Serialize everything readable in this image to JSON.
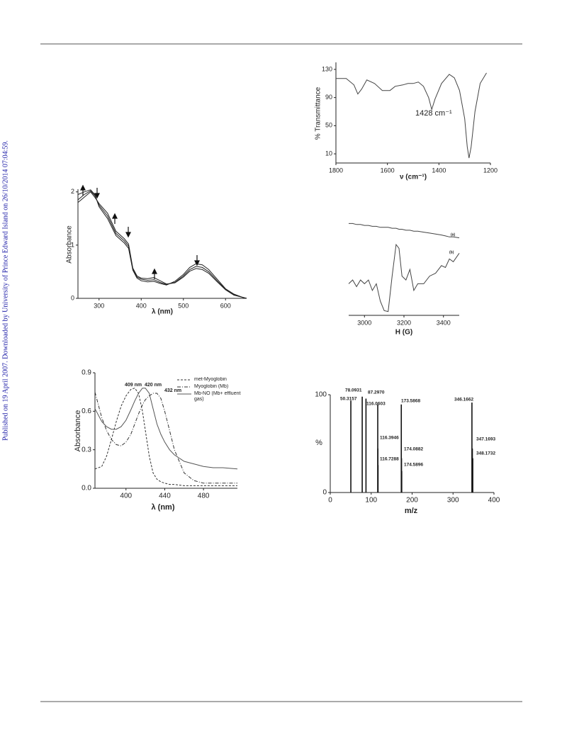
{
  "sidebar_note": "Published on 19 April 2007. Downloaded by University of Prince Edward Island on 26/10/2014 07:04:59.",
  "chart_data": [
    {
      "type": "line",
      "ylabel": "% Transmittance",
      "xlabel": "ν (cm⁻¹)",
      "annotations": [
        "1428 cm⁻¹"
      ],
      "xlim": [
        1800,
        1200
      ],
      "xticks": [
        1800,
        1600,
        1400,
        1200
      ],
      "ylim": [
        -3,
        140
      ],
      "yticks": [
        10,
        50,
        90,
        130
      ],
      "x": [
        1800,
        1760,
        1730,
        1715,
        1700,
        1680,
        1650,
        1620,
        1590,
        1570,
        1540,
        1520,
        1500,
        1480,
        1460,
        1440,
        1428,
        1415,
        1390,
        1360,
        1340,
        1320,
        1300,
        1290,
        1283,
        1275,
        1260,
        1240,
        1215
      ],
      "series": [
        {
          "color": "#444",
          "dash": "solid",
          "values": [
            117,
            117,
            108,
            95,
            102,
            115,
            110,
            100,
            100,
            106,
            108,
            110,
            110,
            112,
            106,
            90,
            73,
            88,
            110,
            123,
            118,
            100,
            60,
            20,
            4,
            20,
            70,
            110,
            125
          ]
        }
      ]
    },
    {
      "type": "line",
      "xlabel": "H (G)",
      "annotations": [
        "(a)",
        "(b)"
      ],
      "xlim": [
        2920,
        3480
      ],
      "xticks": [
        3000,
        3200,
        3400
      ],
      "ylim": [
        0,
        100
      ],
      "x": [
        2920,
        2940,
        2960,
        2980,
        3000,
        3020,
        3040,
        3060,
        3080,
        3100,
        3120,
        3140,
        3160,
        3175,
        3190,
        3210,
        3230,
        3250,
        3270,
        3300,
        3330,
        3360,
        3390,
        3410,
        3430,
        3450,
        3480
      ],
      "series": [
        {
          "color": "#444",
          "dash": "solid",
          "values": [
            96,
            96,
            95,
            95,
            94,
            94,
            93,
            93,
            92,
            92,
            92,
            91,
            91,
            90,
            90,
            89,
            89,
            88,
            88,
            87,
            86,
            85,
            84,
            83,
            82,
            82,
            81
          ]
        },
        {
          "color": "#444",
          "dash": "solid",
          "values": [
            33,
            37,
            30,
            37,
            33,
            37,
            26,
            33,
            15,
            5,
            4,
            41,
            74,
            70,
            41,
            37,
            48,
            26,
            33,
            33,
            41,
            44,
            52,
            50,
            59,
            56,
            65
          ]
        }
      ]
    },
    {
      "type": "line",
      "ylabel": "Absorbance",
      "xlabel": "λ (nm)",
      "xlim": [
        250,
        650
      ],
      "xticks": [
        300,
        400,
        500,
        600
      ],
      "ylim": [
        0,
        2.05
      ],
      "yticks": [
        0,
        1,
        2
      ],
      "x": [
        250,
        265,
        280,
        290,
        300,
        320,
        340,
        360,
        370,
        380,
        390,
        400,
        415,
        430,
        445,
        460,
        480,
        500,
        515,
        530,
        545,
        560,
        580,
        600,
        620,
        640,
        650
      ],
      "series": [
        {
          "color": "#222",
          "dash": "solid",
          "values": [
            1.85,
            1.95,
            2.02,
            1.93,
            1.75,
            1.55,
            1.22,
            1.08,
            0.98,
            0.55,
            0.4,
            0.36,
            0.34,
            0.35,
            0.3,
            0.26,
            0.3,
            0.42,
            0.54,
            0.6,
            0.58,
            0.5,
            0.33,
            0.17,
            0.07,
            0.02,
            0
          ]
        },
        {
          "color": "#222",
          "dash": "solid",
          "values": [
            1.95,
            2.0,
            2.04,
            1.95,
            1.72,
            1.5,
            1.18,
            1.04,
            0.94,
            0.53,
            0.38,
            0.33,
            0.31,
            0.32,
            0.28,
            0.25,
            0.32,
            0.45,
            0.58,
            0.65,
            0.63,
            0.54,
            0.36,
            0.18,
            0.08,
            0.02,
            0
          ]
        },
        {
          "color": "#222",
          "dash": "solid",
          "values": [
            1.8,
            1.9,
            2.0,
            1.9,
            1.78,
            1.6,
            1.26,
            1.12,
            1.02,
            0.57,
            0.42,
            0.38,
            0.37,
            0.39,
            0.33,
            0.27,
            0.29,
            0.4,
            0.51,
            0.56,
            0.54,
            0.47,
            0.31,
            0.16,
            0.06,
            0.02,
            0
          ]
        }
      ]
    },
    {
      "type": "line",
      "ylabel": "Absorbance",
      "xlabel": "λ (nm)",
      "annotations": [
        "409 nm",
        "420 nm",
        "432 nm"
      ],
      "xlim": [
        368,
        515
      ],
      "xticks": [
        400,
        440,
        480
      ],
      "ylim": [
        0,
        0.9
      ],
      "yticks": [
        {
          "value": 0,
          "label": "0.0"
        },
        0.3,
        0.6,
        0.9
      ],
      "x": [
        368,
        375,
        380,
        385,
        390,
        395,
        400,
        405,
        409,
        413,
        417,
        420,
        424,
        428,
        432,
        436,
        440,
        445,
        450,
        460,
        470,
        480,
        490,
        500,
        515
      ],
      "series": [
        {
          "name": "met-Myoglobin",
          "color": "#333",
          "dash": "dashed",
          "values": [
            0.15,
            0.17,
            0.25,
            0.38,
            0.52,
            0.64,
            0.72,
            0.77,
            0.78,
            0.74,
            0.6,
            0.45,
            0.25,
            0.12,
            0.07,
            0.05,
            0.04,
            0.03,
            0.03,
            0.02,
            0.02,
            0.02,
            0.02,
            0.02,
            0.02
          ]
        },
        {
          "name": "Myoglobin (Mb)",
          "color": "#333",
          "dash": "dashdot",
          "values": [
            0.75,
            0.55,
            0.45,
            0.38,
            0.34,
            0.33,
            0.36,
            0.42,
            0.5,
            0.58,
            0.65,
            0.69,
            0.72,
            0.74,
            0.74,
            0.7,
            0.6,
            0.45,
            0.3,
            0.12,
            0.06,
            0.04,
            0.04,
            0.04,
            0.04
          ]
        },
        {
          "name": "Mb-NO (Mb+ effluent gas)",
          "color": "#555",
          "dash": "solid",
          "values": [
            0.62,
            0.52,
            0.48,
            0.46,
            0.46,
            0.48,
            0.53,
            0.61,
            0.68,
            0.74,
            0.78,
            0.78,
            0.74,
            0.62,
            0.5,
            0.42,
            0.36,
            0.3,
            0.26,
            0.21,
            0.19,
            0.17,
            0.16,
            0.16,
            0.15
          ]
        }
      ]
    },
    {
      "type": "stick",
      "ylabel": "%",
      "xlabel": "m/z",
      "xlim": [
        0,
        400
      ],
      "xticks": [
        0,
        100,
        200,
        300,
        400
      ],
      "ylim": [
        0,
        100
      ],
      "yticks": [
        0,
        100
      ],
      "x": [
        50.3157,
        78.0931,
        87.297,
        116.0603,
        173.5868,
        346.1662,
        116.3946,
        116.7288,
        174.0882,
        174.5896,
        347.1693,
        348.1732
      ],
      "x_labels": [
        "50.3157",
        "78.0931",
        "87.2970",
        "116.0603",
        "173.5868",
        "346.1662",
        "116.3946",
        "116.7288",
        "174.0882",
        "174.5896",
        "347.1693",
        "348.1732"
      ],
      "color": "#111",
      "values": [
        94,
        98,
        96,
        90,
        90,
        92,
        45,
        28,
        35,
        22,
        45,
        35
      ]
    }
  ]
}
